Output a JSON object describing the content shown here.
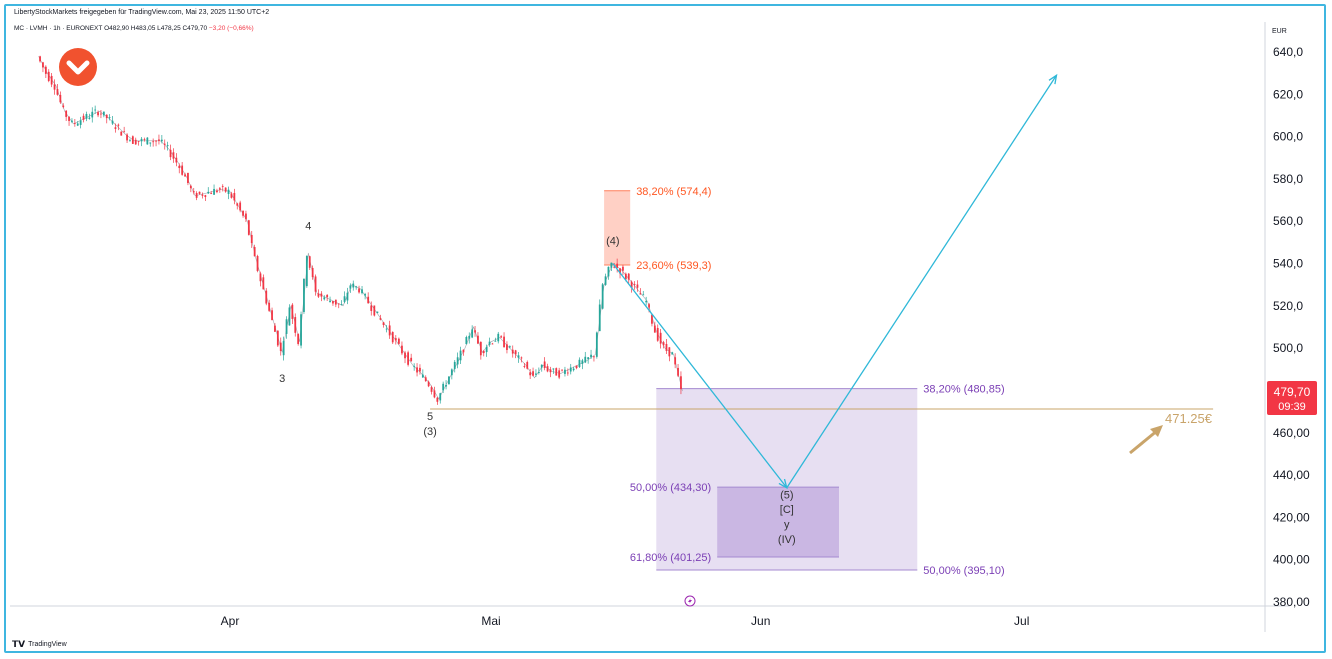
{
  "header": {
    "attribution": "LibertyStockMarkets freigegeben für TradingView.com, Mai 23, 2025 11:50 UTC+2",
    "symbol_line": "MC · LVMH · 1h · EURONEXT",
    "ohlc": "O482,90 H483,05 L478,25 C479,70",
    "change": "−3,20 (−0,66%)"
  },
  "logo": {
    "text": "TradingView"
  },
  "colors": {
    "up": "#26a69a",
    "down": "#f23645",
    "arrow": "#2fb8d8",
    "fib_red": "#ff5722",
    "fib_purple": "#7b3fb5",
    "support": "#c9a46a"
  },
  "chart_data": {
    "type": "line",
    "instrument": "MC · LVMH · 1h · EURONEXT",
    "currency": "EUR",
    "ylim": [
      370,
      650
    ],
    "y_ticks": [
      "640,0",
      "620,0",
      "600,0",
      "580,0",
      "560,0",
      "540,0",
      "520,0",
      "500,0",
      "480,00",
      "460,00",
      "440,00",
      "420,00",
      "400,00",
      "380,00"
    ],
    "y_tick_values": [
      640,
      620,
      600,
      580,
      560,
      540,
      520,
      500,
      480,
      460,
      440,
      420,
      400,
      380
    ],
    "x_ticks": [
      "Apr",
      "Mai",
      "Jun",
      "Jul"
    ],
    "last_price": "479,70",
    "countdown": "09:39",
    "price_path": [
      {
        "x": "2025-03-10",
        "y": 638
      },
      {
        "x": "2025-03-11",
        "y": 630
      },
      {
        "x": "2025-03-12",
        "y": 624
      },
      {
        "x": "2025-03-13",
        "y": 612
      },
      {
        "x": "2025-03-14",
        "y": 606
      },
      {
        "x": "2025-03-17",
        "y": 612
      },
      {
        "x": "2025-03-18",
        "y": 609
      },
      {
        "x": "2025-03-19",
        "y": 605
      },
      {
        "x": "2025-03-20",
        "y": 601
      },
      {
        "x": "2025-03-21",
        "y": 598
      },
      {
        "x": "2025-03-24",
        "y": 598
      },
      {
        "x": "2025-03-25",
        "y": 594
      },
      {
        "x": "2025-03-26",
        "y": 588
      },
      {
        "x": "2025-03-27",
        "y": 581
      },
      {
        "x": "2025-03-28",
        "y": 572
      },
      {
        "x": "2025-03-31",
        "y": 575
      },
      {
        "x": "2025-04-01",
        "y": 574
      },
      {
        "x": "2025-04-03",
        "y": 560
      },
      {
        "x": "2025-04-04",
        "y": 542
      },
      {
        "x": "2025-04-07",
        "y": 498
      },
      {
        "x": "2025-04-08",
        "y": 520
      },
      {
        "x": "2025-04-09",
        "y": 503
      },
      {
        "x": "2025-04-10",
        "y": 545
      },
      {
        "x": "2025-04-11",
        "y": 526
      },
      {
        "x": "2025-04-14",
        "y": 520
      },
      {
        "x": "2025-04-15",
        "y": 530
      },
      {
        "x": "2025-04-16",
        "y": 528
      },
      {
        "x": "2025-04-22",
        "y": 492
      },
      {
        "x": "2025-04-23",
        "y": 488
      },
      {
        "x": "2025-04-24",
        "y": 483
      },
      {
        "x": "2025-04-25",
        "y": 476
      },
      {
        "x": "2025-04-28",
        "y": 500
      },
      {
        "x": "2025-04-29",
        "y": 510
      },
      {
        "x": "2025-04-30",
        "y": 498
      },
      {
        "x": "2025-05-01",
        "y": 503
      },
      {
        "x": "2025-05-02",
        "y": 505
      },
      {
        "x": "2025-05-05",
        "y": 492
      },
      {
        "x": "2025-05-06",
        "y": 486
      },
      {
        "x": "2025-05-07",
        "y": 492
      },
      {
        "x": "2025-05-08",
        "y": 489
      },
      {
        "x": "2025-05-09",
        "y": 488
      },
      {
        "x": "2025-05-12",
        "y": 494
      },
      {
        "x": "2025-05-13",
        "y": 497
      },
      {
        "x": "2025-05-14",
        "y": 530
      },
      {
        "x": "2025-05-15",
        "y": 540
      },
      {
        "x": "2025-05-16",
        "y": 537
      },
      {
        "x": "2025-05-19",
        "y": 522
      },
      {
        "x": "2025-05-20",
        "y": 508
      },
      {
        "x": "2025-05-21",
        "y": 500
      },
      {
        "x": "2025-05-22",
        "y": 497
      },
      {
        "x": "2025-05-23",
        "y": 479.7
      }
    ],
    "forecast_path": [
      {
        "x": "2025-05-15",
        "y": 540
      },
      {
        "x": "2025-06-04",
        "y": 434
      },
      {
        "x": "2025-07-05",
        "y": 629
      }
    ],
    "support_level": {
      "y": 471.25,
      "label": "471.25€",
      "from": "2025-04-24",
      "to": "2025-07-23"
    },
    "zones": [
      {
        "label_low": "23,60% (539,3)",
        "label_high": "38,20% (574,4)",
        "low": 539.3,
        "high": 574.4,
        "from": "2025-05-14",
        "to": "2025-05-17",
        "color": "fib_red"
      },
      {
        "label_high": "38,20% (480,85)",
        "label_low": "50,00% (395,10)",
        "high": 480.85,
        "low": 395.1,
        "from": "2025-05-20",
        "to": "2025-06-19",
        "color": "fib_purple"
      },
      {
        "label_high": "50,00% (434,30)",
        "label_low": "61,80% (401,25)",
        "high": 434.3,
        "low": 401.25,
        "from": "2025-05-27",
        "to": "2025-06-10",
        "color": "fib_purple"
      }
    ],
    "wave_labels": [
      {
        "text": "3",
        "x": "2025-04-07",
        "y": 484
      },
      {
        "text": "4",
        "x": "2025-04-10",
        "y": 556
      },
      {
        "text": "5",
        "x": "2025-04-24",
        "y": 466
      },
      {
        "text": "(3)",
        "x": "2025-04-24",
        "y": 459
      },
      {
        "text": "(4)",
        "x": "2025-05-15",
        "y": 549
      },
      {
        "text": "(5)",
        "x": "2025-06-04",
        "y": 429
      },
      {
        "text": "[C]",
        "x": "2025-06-04",
        "y": 422
      },
      {
        "text": "y",
        "x": "2025-06-04",
        "y": 415
      },
      {
        "text": "(IV)",
        "x": "2025-06-04",
        "y": 408
      }
    ]
  }
}
